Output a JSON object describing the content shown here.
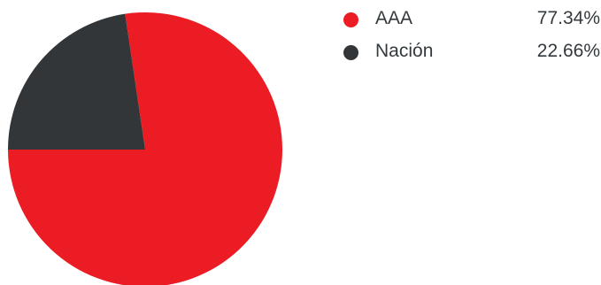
{
  "chart_data": {
    "type": "pie",
    "series": [
      {
        "name": "AAA",
        "value": 77.34,
        "value_label": "77.34%",
        "color": "#ec1c24"
      },
      {
        "name": "Nación",
        "value": 22.66,
        "value_label": "22.66%",
        "color": "#333638"
      }
    ],
    "legend": "right"
  }
}
